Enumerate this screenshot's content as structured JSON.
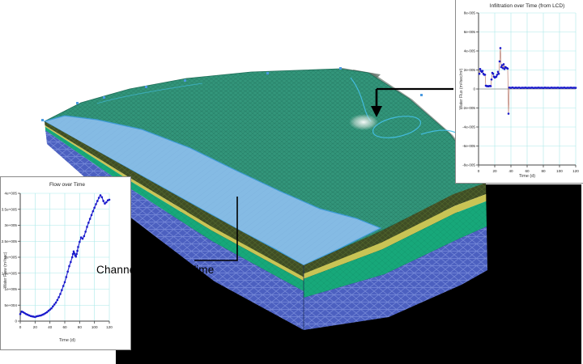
{
  "scene": {
    "callout_label": "Channel flow over Time",
    "colors": {
      "surface_teal": "#33967b",
      "surface_mesh": "#1e6e58",
      "river_blue": "#85bbe4",
      "river_outline": "#3d9bd8",
      "contour_cyan": "#45c0e8",
      "layer_olive": "#3f4d24",
      "layer_yellow": "#c9c455",
      "layer_green": "#17a87a",
      "layer_blue": "#4c60c0",
      "layer_blue_mesh": "#8194de",
      "backdrop_black": "#000000",
      "dot_blue": "#1a1acc"
    }
  },
  "chart_data": [
    {
      "type": "scatter",
      "title": "Flow over Time",
      "xlabel": "Time (d)",
      "ylabel": "Water Flow (m³/sec)",
      "x_range": [
        0,
        120
      ],
      "y_range": [
        0,
        400000
      ],
      "x_ticks": [
        0,
        20,
        40,
        60,
        80,
        100,
        120
      ],
      "y_tick_labels": [
        "0",
        "5e+004",
        "1e+005",
        "1.5e+005",
        "2e+005",
        "2.5e+005",
        "3e+005",
        "3.5e+005",
        "4e+005"
      ],
      "grid": true,
      "legend": "none",
      "marker_color": "#1a1acc",
      "line_color": "#2a2ad0",
      "points": [
        [
          0,
          22000
        ],
        [
          2,
          30000
        ],
        [
          4,
          28000
        ],
        [
          6,
          25000
        ],
        [
          8,
          22000
        ],
        [
          10,
          20000
        ],
        [
          12,
          18000
        ],
        [
          14,
          16000
        ],
        [
          16,
          15000
        ],
        [
          18,
          14000
        ],
        [
          20,
          13000
        ],
        [
          22,
          15000
        ],
        [
          24,
          16000
        ],
        [
          26,
          17000
        ],
        [
          28,
          18000
        ],
        [
          30,
          20000
        ],
        [
          32,
          22000
        ],
        [
          34,
          25000
        ],
        [
          36,
          28000
        ],
        [
          38,
          32000
        ],
        [
          40,
          36000
        ],
        [
          42,
          40000
        ],
        [
          44,
          46000
        ],
        [
          46,
          52000
        ],
        [
          48,
          58000
        ],
        [
          50,
          66000
        ],
        [
          52,
          75000
        ],
        [
          54,
          85000
        ],
        [
          56,
          97000
        ],
        [
          58,
          110000
        ],
        [
          60,
          122000
        ],
        [
          62,
          138000
        ],
        [
          64,
          155000
        ],
        [
          66,
          172000
        ],
        [
          68,
          185000
        ],
        [
          70,
          200000
        ],
        [
          71,
          210000
        ],
        [
          72,
          218000
        ],
        [
          73,
          212000
        ],
        [
          74,
          206000
        ],
        [
          75,
          202000
        ],
        [
          76,
          210000
        ],
        [
          77,
          220000
        ],
        [
          78,
          232000
        ],
        [
          80,
          248000
        ],
        [
          82,
          262000
        ],
        [
          84,
          258000
        ],
        [
          86,
          266000
        ],
        [
          88,
          280000
        ],
        [
          90,
          295000
        ],
        [
          92,
          308000
        ],
        [
          94,
          320000
        ],
        [
          96,
          332000
        ],
        [
          98,
          344000
        ],
        [
          100,
          355000
        ],
        [
          102,
          366000
        ],
        [
          104,
          376000
        ],
        [
          106,
          386000
        ],
        [
          108,
          394000
        ],
        [
          110,
          388000
        ],
        [
          112,
          376000
        ],
        [
          114,
          368000
        ],
        [
          116,
          372000
        ],
        [
          118,
          378000
        ],
        [
          120,
          380000
        ]
      ]
    },
    {
      "type": "scatter",
      "title": "Infiltration over Time (from LCD)",
      "xlabel": "Time (d)",
      "ylabel": "Water Flux (m³/sec/m²)",
      "x_range": [
        0,
        120
      ],
      "y_range": [
        -8e-05,
        8e-05
      ],
      "x_ticks": [
        0,
        20,
        40,
        60,
        80,
        100,
        120
      ],
      "y_tick_labels": [
        "-8e-005",
        "-6e-005",
        "-4e-005",
        "-2e-005",
        "0",
        "2e-005",
        "4e-005",
        "6e-005",
        "8e-005"
      ],
      "grid": true,
      "legend": "none",
      "marker_color": "#1a1acc",
      "line_color": "#b06858",
      "zero_line": true,
      "points": [
        [
          1,
          1.6e-05
        ],
        [
          2,
          2.1e-05
        ],
        [
          3,
          1.9e-05
        ],
        [
          4,
          1.8e-05
        ],
        [
          5,
          1.9e-05
        ],
        [
          6,
          1.6e-05
        ],
        [
          7,
          1.5e-05
        ],
        [
          8,
          1.5e-05
        ],
        [
          9,
          3.5e-06
        ],
        [
          10,
          3e-06
        ],
        [
          11,
          3e-06
        ],
        [
          12,
          2.8e-06
        ],
        [
          13,
          3e-06
        ],
        [
          14,
          3.2e-06
        ],
        [
          15,
          3e-06
        ],
        [
          16,
          1e-05
        ],
        [
          17,
          1.7e-05
        ],
        [
          18,
          1.6e-05
        ],
        [
          19,
          1.3e-05
        ],
        [
          20,
          1.2e-05
        ],
        [
          21,
          1.25e-05
        ],
        [
          22,
          1.3e-05
        ],
        [
          23,
          1.5e-05
        ],
        [
          24,
          1.8e-05
        ],
        [
          25,
          1.6e-05
        ],
        [
          26,
          2.9e-05
        ],
        [
          27,
          4.3e-05
        ],
        [
          28,
          2.3e-05
        ],
        [
          29,
          2.5e-05
        ],
        [
          30,
          2.2e-05
        ],
        [
          31,
          2.6e-05
        ],
        [
          32,
          2.1e-05
        ],
        [
          33,
          2.3e-05
        ],
        [
          34,
          2.25e-05
        ],
        [
          35,
          2.2e-05
        ],
        [
          36,
          2.15e-05
        ],
        [
          37,
          -2.6e-05
        ],
        [
          38,
          1.5e-06
        ],
        [
          40,
          1.2e-06
        ],
        [
          42,
          1.6e-06
        ],
        [
          44,
          1.1e-06
        ],
        [
          46,
          1.4e-06
        ],
        [
          48,
          1.2e-06
        ],
        [
          50,
          1.5e-06
        ],
        [
          52,
          1.1e-06
        ],
        [
          54,
          1.3e-06
        ],
        [
          56,
          1.2e-06
        ],
        [
          58,
          1.4e-06
        ],
        [
          60,
          1.1e-06
        ],
        [
          62,
          1.3e-06
        ],
        [
          64,
          1.2e-06
        ],
        [
          66,
          1.4e-06
        ],
        [
          68,
          1.1e-06
        ],
        [
          70,
          1.3e-06
        ],
        [
          72,
          1.2e-06
        ],
        [
          74,
          1.4e-06
        ],
        [
          76,
          1.2e-06
        ],
        [
          78,
          1.3e-06
        ],
        [
          80,
          1.1e-06
        ],
        [
          82,
          1.4e-06
        ],
        [
          84,
          1.2e-06
        ],
        [
          86,
          1.3e-06
        ],
        [
          88,
          1.1e-06
        ],
        [
          90,
          1.4e-06
        ],
        [
          92,
          1.2e-06
        ],
        [
          94,
          1.3e-06
        ],
        [
          96,
          1.2e-06
        ],
        [
          98,
          1.4e-06
        ],
        [
          100,
          1.1e-06
        ],
        [
          102,
          1.3e-06
        ],
        [
          104,
          1.2e-06
        ],
        [
          106,
          1.4e-06
        ],
        [
          108,
          1.1e-06
        ],
        [
          110,
          1.3e-06
        ],
        [
          112,
          1.2e-06
        ],
        [
          114,
          1.4e-06
        ],
        [
          116,
          1.2e-06
        ],
        [
          118,
          1.3e-06
        ],
        [
          120,
          1.2e-06
        ]
      ]
    }
  ]
}
